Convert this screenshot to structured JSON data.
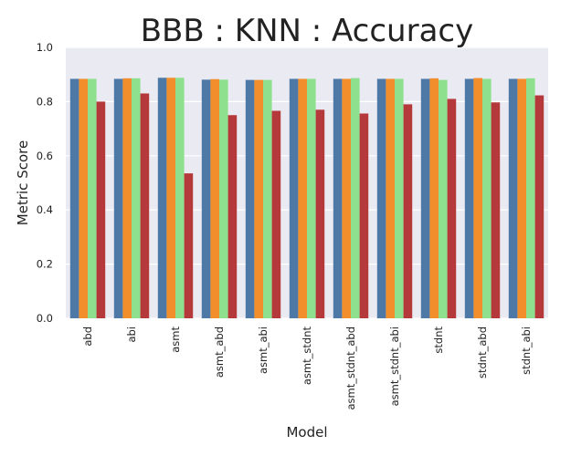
{
  "chart_data": {
    "type": "bar",
    "title": "BBB : KNN : Accuracy",
    "xlabel": "Model",
    "ylabel": "Metric Score",
    "ylim": [
      0,
      1.0
    ],
    "yticks": [
      "0.0",
      "0.2",
      "0.4",
      "0.6",
      "0.8",
      "1.0"
    ],
    "grid": true,
    "legend": "none",
    "categories": [
      "abd",
      "abi",
      "asmt",
      "asmt_abd",
      "asmt_abi",
      "asmt_stdnt",
      "asmt_stdnt_abd",
      "asmt_stdnt_abi",
      "stdnt",
      "stdnt_abd",
      "stdnt_abi"
    ],
    "series": [
      {
        "color": "#4e79a7",
        "values": [
          0.884,
          0.884,
          0.888,
          0.881,
          0.88,
          0.884,
          0.884,
          0.884,
          0.884,
          0.884,
          0.884
        ]
      },
      {
        "color": "#f28e2b",
        "values": [
          0.884,
          0.886,
          0.888,
          0.883,
          0.88,
          0.884,
          0.884,
          0.884,
          0.886,
          0.887,
          0.884
        ]
      },
      {
        "color": "#8ee08f",
        "values": [
          0.884,
          0.886,
          0.888,
          0.881,
          0.88,
          0.884,
          0.887,
          0.884,
          0.88,
          0.884,
          0.886
        ]
      },
      {
        "color": "#b5383b",
        "values": [
          0.8,
          0.83,
          0.535,
          0.75,
          0.766,
          0.77,
          0.756,
          0.79,
          0.81,
          0.797,
          0.823
        ]
      }
    ],
    "background": "#eaeaf2"
  }
}
